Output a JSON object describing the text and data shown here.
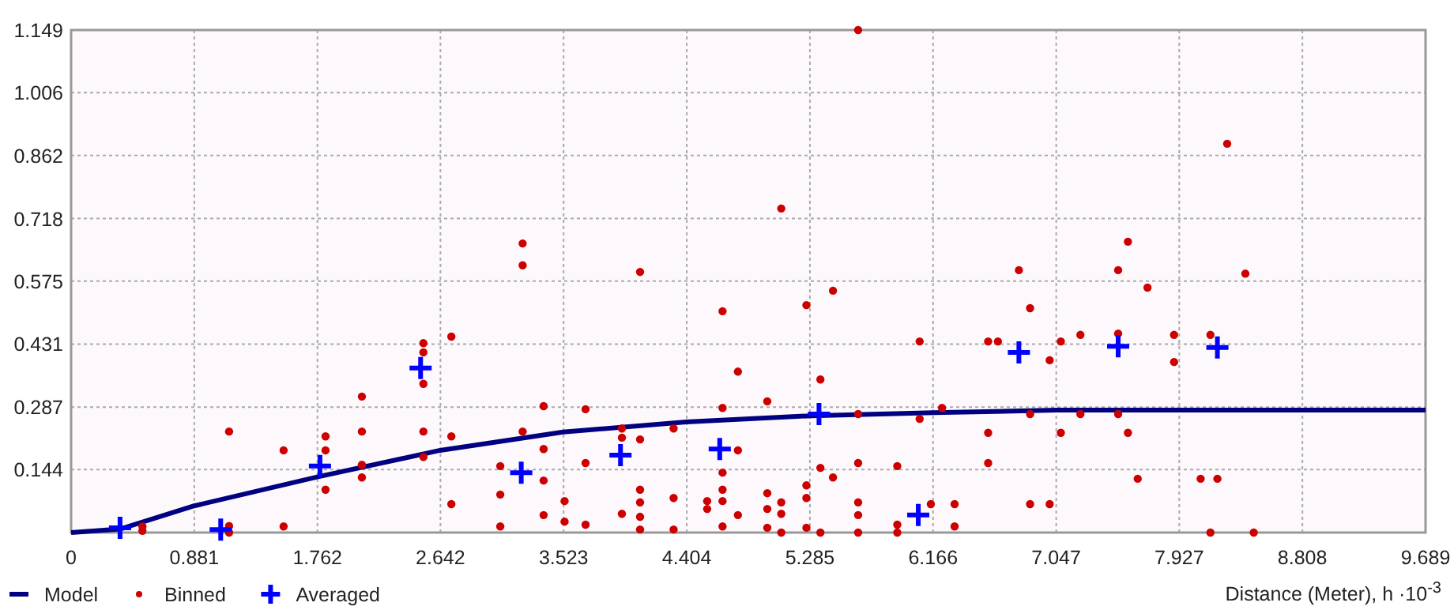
{
  "chart_data": {
    "type": "scatter",
    "xlabel": "Distance (Meter), h ·10$^{-3}$",
    "xlim": [
      0,
      9.689
    ],
    "xticks": [
      0,
      0.881,
      1.762,
      2.642,
      3.523,
      4.404,
      5.285,
      6.166,
      7.047,
      7.927,
      8.808,
      9.689
    ],
    "ylim": [
      0,
      1.149
    ],
    "yticks": [
      {
        "value": 0,
        "label": null
      },
      0.144,
      0.287,
      0.431,
      0.575,
      0.718,
      0.862,
      1.006,
      1.149
    ],
    "grid": true,
    "legend": "bottom",
    "series": [
      {
        "name": "Model",
        "type": "line",
        "marker": "none",
        "color": "#000080",
        "x": [
          0,
          0.35,
          0.88,
          1.76,
          2.64,
          3.52,
          4.4,
          5.29,
          6.17,
          7.05,
          9.689
        ],
        "values": [
          0,
          0.008,
          0.061,
          0.127,
          0.188,
          0.23,
          0.253,
          0.267,
          0.274,
          0.28,
          0.28
        ]
      },
      {
        "name": "Binned",
        "marker": "circle",
        "color": "#cc0000",
        "x": [
          0.51,
          0.51,
          1.13,
          1.13,
          1.13,
          1.52,
          1.52,
          1.82,
          1.82,
          1.82,
          2.08,
          2.08,
          2.08,
          2.08,
          2.52,
          2.52,
          2.52,
          2.52,
          2.52,
          2.72,
          2.72,
          2.72,
          3.07,
          3.07,
          3.07,
          3.23,
          3.23,
          3.23,
          3.38,
          3.38,
          3.38,
          3.38,
          3.53,
          3.53,
          3.68,
          3.68,
          3.68,
          3.94,
          3.94,
          3.94,
          4.07,
          4.07,
          4.07,
          4.07,
          4.07,
          4.07,
          4.31,
          4.31,
          4.31,
          4.55,
          4.55,
          4.66,
          4.66,
          4.66,
          4.66,
          4.66,
          4.66,
          4.77,
          4.77,
          4.77,
          4.98,
          4.98,
          4.98,
          4.98,
          5.08,
          5.08,
          5.08,
          5.08,
          5.26,
          5.26,
          5.26,
          5.26,
          5.36,
          5.36,
          5.36,
          5.45,
          5.45,
          5.63,
          5.63,
          5.63,
          5.63,
          5.63,
          5.63,
          5.91,
          5.91,
          5.91,
          6.07,
          6.07,
          6.15,
          6.23,
          6.32,
          6.32,
          6.56,
          6.56,
          6.56,
          6.63,
          6.78,
          6.86,
          6.86,
          6.86,
          7.0,
          7.0,
          7.08,
          7.08,
          7.22,
          7.22,
          7.49,
          7.49,
          7.49,
          7.56,
          7.56,
          7.63,
          7.7,
          7.89,
          7.89,
          8.08,
          8.15,
          8.15,
          8.2,
          8.27,
          8.4,
          8.46
        ],
        "values": [
          0.014,
          0.004,
          0.231,
          0.015,
          0.0,
          0.188,
          0.014,
          0.22,
          0.188,
          0.098,
          0.311,
          0.231,
          0.155,
          0.126,
          0.433,
          0.412,
          0.34,
          0.231,
          0.173,
          0.448,
          0.22,
          0.065,
          0.152,
          0.087,
          0.014,
          0.661,
          0.611,
          0.231,
          0.289,
          0.191,
          0.119,
          0.04,
          0.072,
          0.025,
          0.282,
          0.159,
          0.018,
          0.238,
          0.217,
          0.043,
          0.596,
          0.213,
          0.098,
          0.069,
          0.036,
          0.007,
          0.238,
          0.079,
          0.007,
          0.072,
          0.054,
          0.506,
          0.285,
          0.137,
          0.098,
          0.072,
          0.014,
          0.368,
          0.188,
          0.04,
          0.3,
          0.09,
          0.054,
          0.011,
          0.741,
          0.069,
          0.043,
          0.0,
          0.52,
          0.108,
          0.079,
          0.011,
          0.35,
          0.148,
          0.0,
          0.553,
          0.126,
          1.149,
          0.271,
          0.159,
          0.069,
          0.04,
          0.0,
          0.152,
          0.018,
          0.0,
          0.437,
          0.26,
          0.065,
          0.285,
          0.065,
          0.014,
          0.437,
          0.228,
          0.159,
          0.437,
          0.6,
          0.513,
          0.271,
          0.065,
          0.394,
          0.065,
          0.437,
          0.228,
          0.452,
          0.271,
          0.6,
          0.455,
          0.271,
          0.665,
          0.228,
          0.123,
          0.56,
          0.452,
          0.39,
          0.123,
          0.452,
          0.0,
          0.123,
          0.889,
          0.592,
          0.0
        ]
      },
      {
        "name": "Averaged",
        "marker": "cross",
        "color": "#0000ff",
        "x": [
          0.35,
          1.07,
          1.78,
          2.5,
          3.22,
          3.93,
          4.64,
          5.35,
          6.06,
          6.78,
          7.49,
          8.2
        ],
        "values": [
          0.011,
          0.007,
          0.152,
          0.376,
          0.137,
          0.177,
          0.191,
          0.271,
          0.04,
          0.412,
          0.426,
          0.423
        ]
      }
    ]
  }
}
